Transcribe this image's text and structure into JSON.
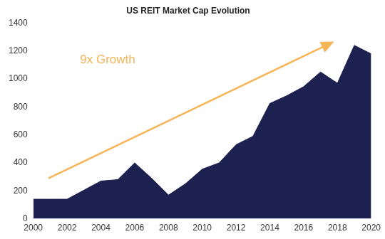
{
  "chart_data": {
    "type": "area",
    "title": "US REIT Market Cap Evolution",
    "x": [
      2000,
      2001,
      2002,
      2003,
      2004,
      2005,
      2006,
      2007,
      2008,
      2009,
      2010,
      2011,
      2012,
      2013,
      2014,
      2015,
      2016,
      2017,
      2018,
      2019,
      2020
    ],
    "values": [
      140,
      140,
      140,
      205,
      270,
      280,
      400,
      290,
      170,
      250,
      355,
      400,
      530,
      590,
      825,
      880,
      945,
      1050,
      970,
      1240,
      1180
    ],
    "color": "#1c2150",
    "xlim": [
      2000,
      2020
    ],
    "xticks": [
      2000,
      2002,
      2004,
      2006,
      2008,
      2010,
      2012,
      2014,
      2016,
      2018,
      2020
    ],
    "ylim": [
      0,
      1400
    ],
    "yticks": [
      0,
      200,
      400,
      600,
      800,
      1000,
      1200,
      1400
    ],
    "grid": false,
    "annotation": "9x Growth"
  }
}
